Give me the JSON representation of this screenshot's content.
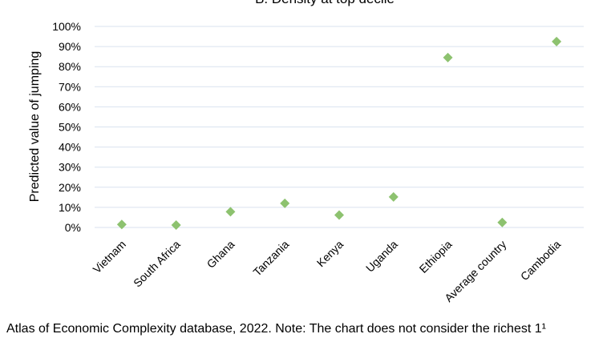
{
  "chart_data": {
    "type": "scatter",
    "title": "B.   Density at top decile",
    "ylabel": "Predicted value of jumping",
    "xlabel": "",
    "categories": [
      "Vietnam",
      "South Africa",
      "Ghana",
      "Tanzania",
      "Kenya",
      "Uganda",
      "Ethiopia",
      "Average country",
      "Cambodia"
    ],
    "values": [
      1.5,
      1.2,
      7.8,
      12.0,
      6.2,
      15.2,
      84.5,
      2.5,
      92.5
    ],
    "y_ticks": [
      "0%",
      "10%",
      "20%",
      "30%",
      "40%",
      "50%",
      "60%",
      "70%",
      "80%",
      "90%",
      "100%"
    ],
    "ylim": [
      0,
      100
    ],
    "y_unit": "percent",
    "grid": true,
    "legend": "none",
    "marker": "diamond",
    "marker_color": "#8dc26f",
    "grid_color": "#d9e2ef"
  },
  "footnote": "Atlas of Economic Complexity database, 2022. Note: The chart does not consider the richest 1¹"
}
